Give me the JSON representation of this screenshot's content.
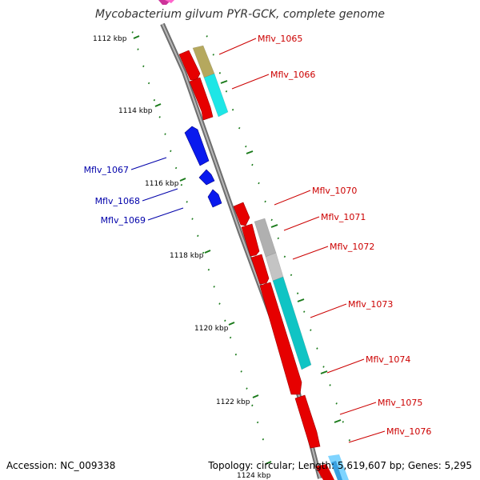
{
  "title": "Mycobacterium gilvum PYR-GCK, complete genome",
  "footer": {
    "accession": "Accession: NC_009338",
    "summary": "Topology: circular; Length: 5,619,607 bp; Genes: 5,295"
  },
  "colors": {
    "backbone": "#8a8a8a",
    "tick": "#1a7a1a",
    "forward_label": "#cc0000",
    "reverse_label": "#0000aa"
  },
  "scale": {
    "labels": [
      "1112 kbp",
      "1114 kbp",
      "1116 kbp",
      "1118 kbp",
      "1120 kbp",
      "1122 kbp",
      "1124 kbp"
    ]
  },
  "genes": [
    {
      "name": "Mflv_1065",
      "strand": "forward",
      "color": "#cc0000"
    },
    {
      "name": "Mflv_1066",
      "strand": "forward",
      "color": "#cc0000"
    },
    {
      "name": "Mflv_1067",
      "strand": "reverse",
      "color": "#0000aa"
    },
    {
      "name": "Mflv_1068",
      "strand": "reverse",
      "color": "#0000aa"
    },
    {
      "name": "Mflv_1069",
      "strand": "reverse",
      "color": "#0000aa"
    },
    {
      "name": "Mflv_1070",
      "strand": "forward",
      "color": "#cc0000"
    },
    {
      "name": "Mflv_1071",
      "strand": "forward",
      "color": "#cc0000"
    },
    {
      "name": "Mflv_1072",
      "strand": "forward",
      "color": "#cc0000"
    },
    {
      "name": "Mflv_1073",
      "strand": "forward",
      "color": "#cc0000"
    },
    {
      "name": "Mflv_1074",
      "strand": "forward",
      "color": "#cc0000"
    },
    {
      "name": "Mflv_1075",
      "strand": "forward",
      "color": "#cc0000"
    },
    {
      "name": "Mflv_1076",
      "strand": "forward",
      "color": "#cc0000"
    }
  ]
}
